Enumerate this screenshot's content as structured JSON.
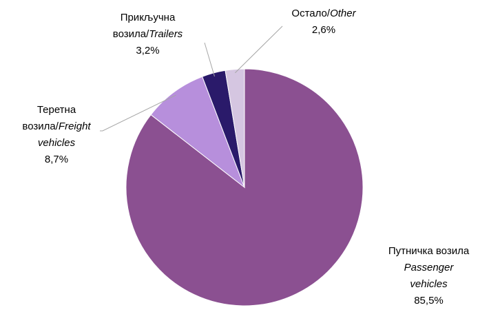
{
  "chart_data": {
    "type": "pie",
    "categories": [
      {
        "sr": "Путничка возила",
        "en": "Passenger vehicles"
      },
      {
        "sr": "Теретна возила/",
        "en": "Freight vehicles"
      },
      {
        "sr": "Прикључна возила/",
        "en": "Trailers"
      },
      {
        "sr": "Остало/",
        "en": "Other"
      }
    ],
    "values": [
      85.5,
      8.7,
      3.2,
      2.6
    ],
    "value_labels": [
      "85,5%",
      "8,7%",
      "3,2%",
      "2,6%"
    ],
    "colors": [
      "#8b5091",
      "#b78fdc",
      "#2a1a6a",
      "#d5c6e1"
    ]
  }
}
